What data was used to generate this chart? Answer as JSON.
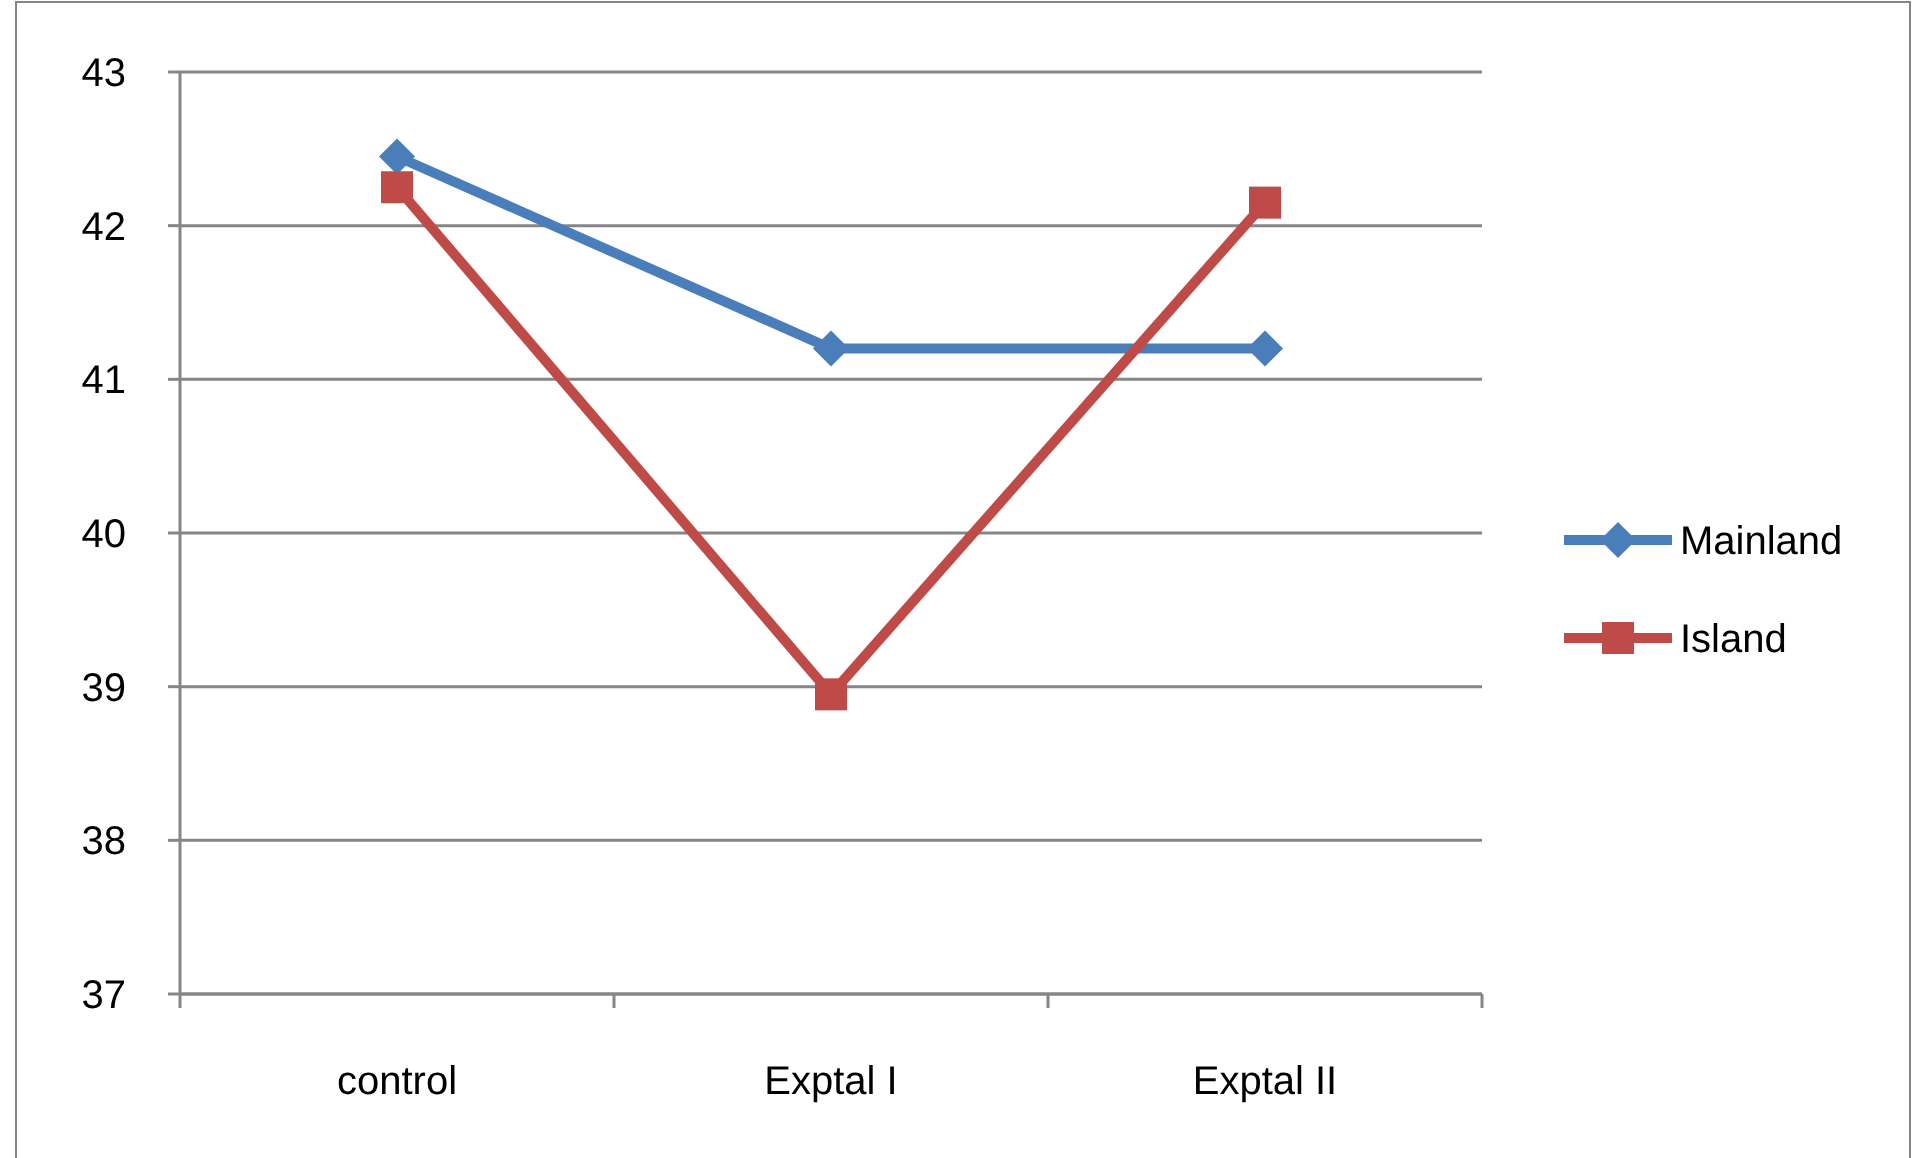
{
  "chart_data": {
    "type": "line",
    "categories": [
      "control",
      "Exptal I",
      "Exptal II"
    ],
    "series": [
      {
        "name": "Mainland",
        "color": "#4a7ebb",
        "marker": "diamond",
        "values": [
          42.45,
          41.2,
          41.2
        ]
      },
      {
        "name": "Island",
        "color": "#be4b48",
        "marker": "square",
        "values": [
          42.25,
          38.95,
          42.15
        ]
      }
    ],
    "ylim": [
      37,
      43
    ],
    "yticks": [
      37,
      38,
      39,
      40,
      41,
      42,
      43
    ],
    "grid": "y",
    "legend": "right",
    "line_style": "solid"
  }
}
